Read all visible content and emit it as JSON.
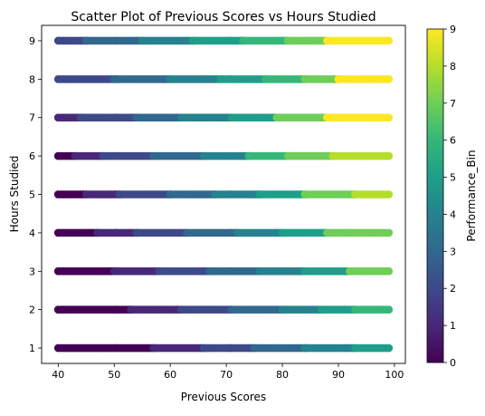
{
  "chart_data": {
    "type": "scatter",
    "title": "Scatter Plot of Previous Scores vs Hours Studied",
    "xlabel": "Previous Scores",
    "ylabel": "Hours Studied",
    "xlim": [
      37.05,
      101.95
    ],
    "ylim": [
      0.6,
      9.4
    ],
    "xticks": [
      40,
      50,
      60,
      70,
      80,
      90,
      100
    ],
    "yticks": [
      1,
      2,
      3,
      4,
      5,
      6,
      7,
      8,
      9
    ],
    "colorbar": {
      "label": "Performance_Bin",
      "range": [
        0,
        9
      ],
      "ticks": [
        0,
        1,
        2,
        3,
        4,
        5,
        6,
        7,
        8,
        9
      ],
      "colormap": "viridis"
    },
    "series": [
      {
        "hours": 1,
        "segments": [
          [
            40,
            57,
            0
          ],
          [
            57,
            66,
            1
          ],
          [
            66,
            75,
            2
          ],
          [
            75,
            84,
            3
          ],
          [
            84,
            93,
            4
          ],
          [
            93,
            99,
            5
          ]
        ]
      },
      {
        "hours": 2,
        "segments": [
          [
            40,
            53,
            0
          ],
          [
            53,
            62,
            1
          ],
          [
            62,
            71,
            2
          ],
          [
            71,
            80,
            3
          ],
          [
            80,
            87,
            4
          ],
          [
            87,
            93,
            5
          ],
          [
            93,
            99,
            6
          ]
        ]
      },
      {
        "hours": 3,
        "segments": [
          [
            40,
            50,
            0
          ],
          [
            50,
            58,
            1
          ],
          [
            58,
            67,
            2
          ],
          [
            67,
            76,
            3
          ],
          [
            76,
            84,
            4
          ],
          [
            84,
            92,
            5
          ],
          [
            92,
            99,
            7
          ]
        ]
      },
      {
        "hours": 4,
        "segments": [
          [
            40,
            47,
            0
          ],
          [
            47,
            54,
            1
          ],
          [
            54,
            63,
            2
          ],
          [
            63,
            72,
            3
          ],
          [
            72,
            80,
            4
          ],
          [
            80,
            88,
            5
          ],
          [
            88,
            99,
            7
          ]
        ]
      },
      {
        "hours": 5,
        "segments": [
          [
            40,
            45,
            0
          ],
          [
            45,
            51,
            1
          ],
          [
            51,
            60,
            2
          ],
          [
            60,
            68,
            3
          ],
          [
            68,
            76,
            4
          ],
          [
            76,
            84,
            5
          ],
          [
            84,
            93,
            7
          ],
          [
            93,
            99,
            8
          ]
        ]
      },
      {
        "hours": 6,
        "segments": [
          [
            40,
            43,
            0
          ],
          [
            43,
            48,
            1
          ],
          [
            48,
            57,
            2
          ],
          [
            57,
            66,
            3
          ],
          [
            66,
            74,
            4
          ],
          [
            74,
            81,
            6
          ],
          [
            81,
            89,
            7
          ],
          [
            89,
            99,
            8
          ]
        ]
      },
      {
        "hours": 7,
        "segments": [
          [
            40,
            44,
            1
          ],
          [
            44,
            54,
            2
          ],
          [
            54,
            62,
            3
          ],
          [
            62,
            71,
            4
          ],
          [
            71,
            79,
            5
          ],
          [
            79,
            88,
            7
          ],
          [
            88,
            99,
            9
          ]
        ]
      },
      {
        "hours": 8,
        "segments": [
          [
            40,
            50,
            2
          ],
          [
            50,
            60,
            3
          ],
          [
            60,
            69,
            4
          ],
          [
            69,
            77,
            5
          ],
          [
            77,
            84,
            6
          ],
          [
            84,
            90,
            7
          ],
          [
            90,
            99,
            9
          ]
        ]
      },
      {
        "hours": 9,
        "segments": [
          [
            40,
            45,
            2
          ],
          [
            45,
            55,
            3
          ],
          [
            55,
            64,
            4
          ],
          [
            64,
            73,
            5
          ],
          [
            73,
            81,
            6
          ],
          [
            81,
            88,
            7
          ],
          [
            88,
            99,
            9
          ]
        ]
      }
    ]
  }
}
